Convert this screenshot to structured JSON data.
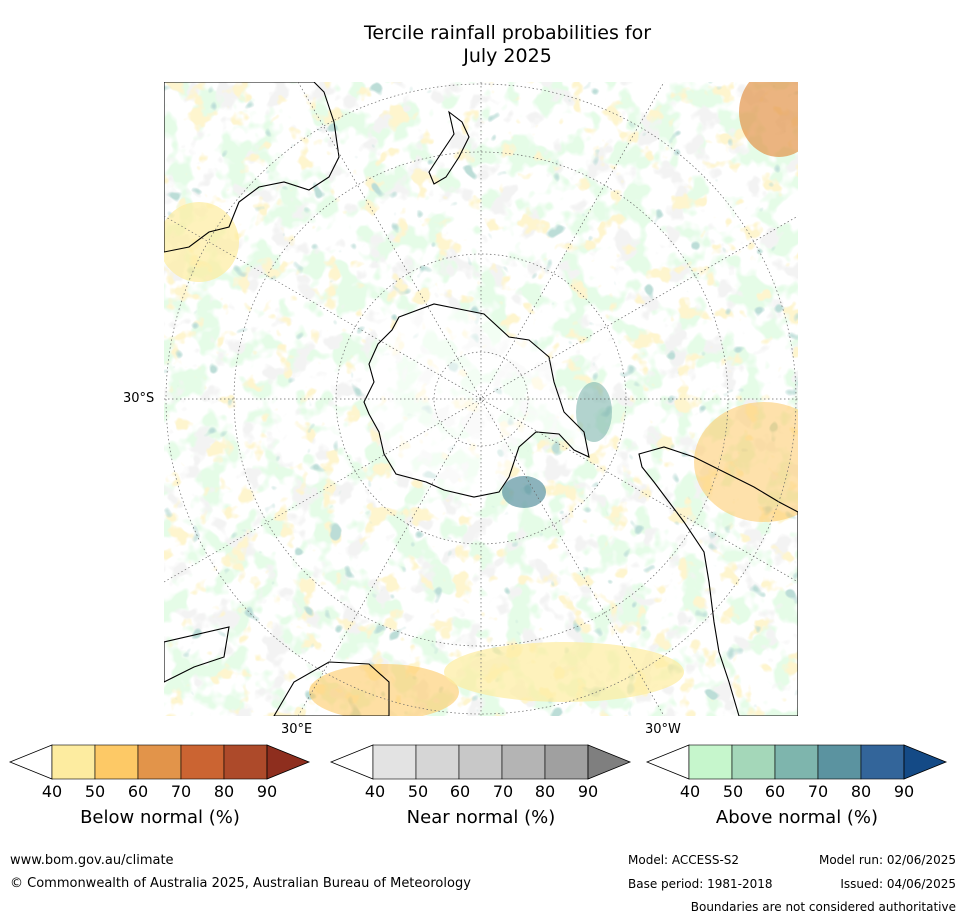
{
  "title": {
    "line1": "Tercile rainfall probabilities for",
    "line2": "July 2025"
  },
  "map": {
    "lat_label": "30°S",
    "lon_label_east": "30°E",
    "lon_label_west": "30°W",
    "colors": {
      "ocean_bg": "#ffffff",
      "coast": "#000000",
      "grid": "#555555",
      "green_40": "#c8f7cc",
      "green_60": "#7fb8ae",
      "green_80": "#34679a",
      "orange_40": "#fde9a0",
      "orange_60": "#fdc65c",
      "orange_70": "#e0904a",
      "grey_40": "#e5e5e5"
    }
  },
  "colorbars": [
    {
      "name": "below",
      "label": "Below normal (%)",
      "ticks": [
        "40",
        "50",
        "60",
        "70",
        "80",
        "90"
      ],
      "colors": [
        "#fdeca0",
        "#fdc966",
        "#e2944a",
        "#cb6432",
        "#ad4a2a",
        "#8e2e1e"
      ]
    },
    {
      "name": "near",
      "label": "Near normal (%)",
      "ticks": [
        "40",
        "50",
        "60",
        "70",
        "80",
        "90"
      ],
      "colors": [
        "#e3e3e3",
        "#d6d6d6",
        "#c8c8c8",
        "#b4b4b4",
        "#a0a0a0",
        "#7f7f7f"
      ]
    },
    {
      "name": "above",
      "label": "Above normal (%)",
      "ticks": [
        "40",
        "50",
        "60",
        "70",
        "80",
        "90"
      ],
      "colors": [
        "#c6f6cc",
        "#a4d7b9",
        "#7eb5ad",
        "#5b93a0",
        "#33659a",
        "#144a86"
      ]
    }
  ],
  "footer": {
    "website": "www.bom.gov.au/climate",
    "copyright": "© Commonwealth of Australia 2025, Australian Bureau of Meteorology",
    "model": "Model: ACCESS-S2",
    "model_run": "Model run: 02/06/2025",
    "base_period": "Base period: 1981-2018",
    "issued": "Issued: 04/06/2025",
    "disclaimer": "Boundaries are not considered authoritative"
  }
}
